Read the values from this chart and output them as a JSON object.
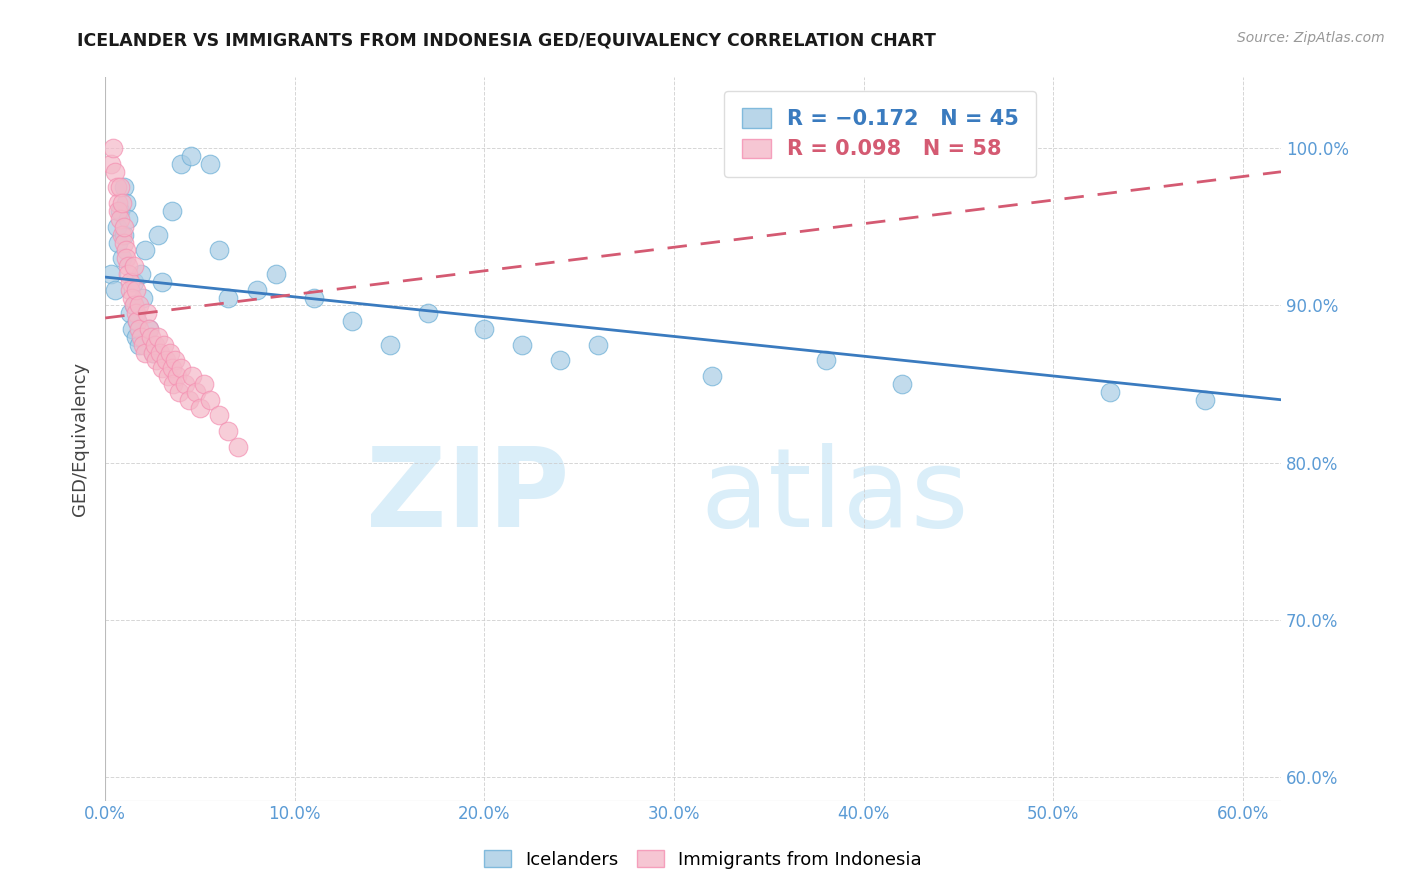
{
  "title": "ICELANDER VS IMMIGRANTS FROM INDONESIA GED/EQUIVALENCY CORRELATION CHART",
  "source": "Source: ZipAtlas.com",
  "ylabel": "GED/Equivalency",
  "xlabel_ticks": [
    "0.0%",
    "10.0%",
    "20.0%",
    "30.0%",
    "40.0%",
    "50.0%",
    "60.0%"
  ],
  "xtick_vals": [
    0.0,
    0.1,
    0.2,
    0.3,
    0.4,
    0.5,
    0.6
  ],
  "ylabel_ticks_right": [
    "100.0%",
    "90.0%",
    "80.0%",
    "70.0%",
    "60.0%"
  ],
  "ytick_vals": [
    1.0,
    0.9,
    0.8,
    0.7,
    0.6
  ],
  "xlim": [
    0.0,
    0.62
  ],
  "ylim": [
    0.585,
    1.045
  ],
  "blue_color": "#a8cce4",
  "pink_color": "#f4b8c8",
  "blue_edge_color": "#6aaed6",
  "pink_edge_color": "#f48fb1",
  "blue_line_color": "#3a7bbf",
  "pink_line_color": "#d45a72",
  "watermark_zip_color": "#daeef9",
  "watermark_atlas_color": "#daeef9",
  "icelanders_x": [
    0.003,
    0.005,
    0.006,
    0.007,
    0.008,
    0.009,
    0.01,
    0.01,
    0.011,
    0.012,
    0.013,
    0.014,
    0.015,
    0.015,
    0.016,
    0.017,
    0.018,
    0.019,
    0.02,
    0.021,
    0.023,
    0.025,
    0.028,
    0.03,
    0.035,
    0.04,
    0.045,
    0.055,
    0.06,
    0.065,
    0.08,
    0.09,
    0.11,
    0.13,
    0.15,
    0.17,
    0.2,
    0.22,
    0.24,
    0.26,
    0.32,
    0.38,
    0.42,
    0.53,
    0.58
  ],
  "icelanders_y": [
    0.92,
    0.91,
    0.95,
    0.94,
    0.96,
    0.93,
    0.975,
    0.945,
    0.965,
    0.955,
    0.895,
    0.885,
    0.9,
    0.915,
    0.88,
    0.89,
    0.875,
    0.92,
    0.905,
    0.935,
    0.885,
    0.87,
    0.945,
    0.915,
    0.96,
    0.99,
    0.995,
    0.99,
    0.935,
    0.905,
    0.91,
    0.92,
    0.905,
    0.89,
    0.875,
    0.895,
    0.885,
    0.875,
    0.865,
    0.875,
    0.855,
    0.865,
    0.85,
    0.845,
    0.84
  ],
  "indonesia_x": [
    0.003,
    0.004,
    0.005,
    0.006,
    0.007,
    0.007,
    0.008,
    0.008,
    0.009,
    0.009,
    0.01,
    0.01,
    0.011,
    0.011,
    0.012,
    0.012,
    0.013,
    0.013,
    0.014,
    0.015,
    0.015,
    0.016,
    0.016,
    0.017,
    0.018,
    0.018,
    0.019,
    0.02,
    0.021,
    0.022,
    0.023,
    0.024,
    0.025,
    0.026,
    0.027,
    0.028,
    0.029,
    0.03,
    0.031,
    0.032,
    0.033,
    0.034,
    0.035,
    0.036,
    0.037,
    0.038,
    0.039,
    0.04,
    0.042,
    0.044,
    0.046,
    0.048,
    0.05,
    0.052,
    0.055,
    0.06,
    0.065,
    0.07
  ],
  "indonesia_y": [
    0.99,
    1.0,
    0.985,
    0.975,
    0.965,
    0.96,
    0.955,
    0.975,
    0.945,
    0.965,
    0.94,
    0.95,
    0.935,
    0.93,
    0.925,
    0.92,
    0.915,
    0.91,
    0.905,
    0.9,
    0.925,
    0.895,
    0.91,
    0.89,
    0.885,
    0.9,
    0.88,
    0.875,
    0.87,
    0.895,
    0.885,
    0.88,
    0.87,
    0.875,
    0.865,
    0.88,
    0.87,
    0.86,
    0.875,
    0.865,
    0.855,
    0.87,
    0.86,
    0.85,
    0.865,
    0.855,
    0.845,
    0.86,
    0.85,
    0.84,
    0.855,
    0.845,
    0.835,
    0.85,
    0.84,
    0.83,
    0.82,
    0.81
  ],
  "blue_trendline_x": [
    0.0,
    0.62
  ],
  "blue_trendline_y": [
    0.918,
    0.84
  ],
  "pink_trendline_x": [
    0.0,
    0.62
  ],
  "pink_trendline_y": [
    0.892,
    0.985
  ]
}
